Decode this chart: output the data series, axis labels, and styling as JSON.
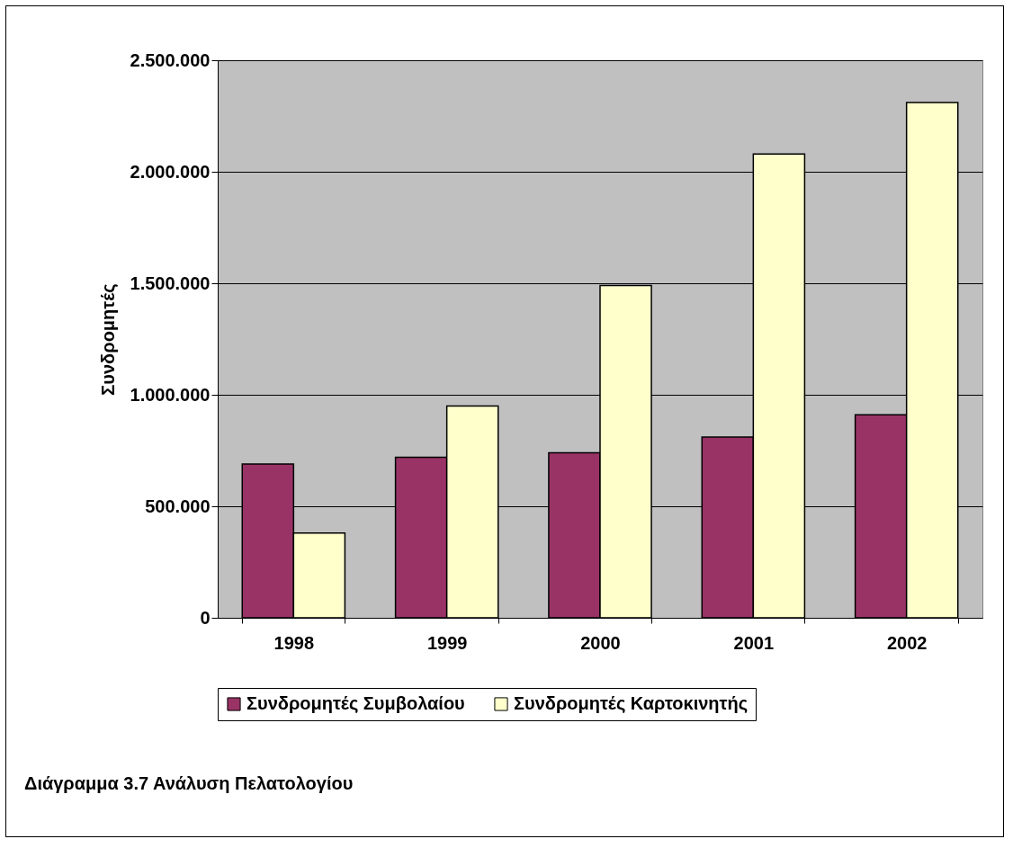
{
  "chart_data": {
    "type": "bar",
    "ylabel": "Συνδρομητές",
    "categories": [
      "1998",
      "1999",
      "2000",
      "2001",
      "2002"
    ],
    "series": [
      {
        "name": "Συνδρομητές Συμβολαίου",
        "color": "#993366",
        "values": [
          690000,
          720000,
          740000,
          810000,
          910000
        ]
      },
      {
        "name": "Συνδρομητές Καρτοκινητής",
        "color": "#ffffcc",
        "values": [
          380000,
          950000,
          1490000,
          2080000,
          2310000
        ]
      }
    ],
    "ylim": [
      0,
      2500000
    ],
    "yticks": [
      {
        "value": 0,
        "label": "0"
      },
      {
        "value": 500000,
        "label": "500.000"
      },
      {
        "value": 1000000,
        "label": "1.000.000"
      },
      {
        "value": 1500000,
        "label": "1.500.000"
      },
      {
        "value": 2000000,
        "label": "2.000.000"
      },
      {
        "value": 2500000,
        "label": "2.500.000"
      }
    ],
    "grid": "y",
    "legend": "bottom",
    "annotations": [
      "Διάγραμμα 3.7 Ανάλυση Πελατολογίου"
    ]
  }
}
